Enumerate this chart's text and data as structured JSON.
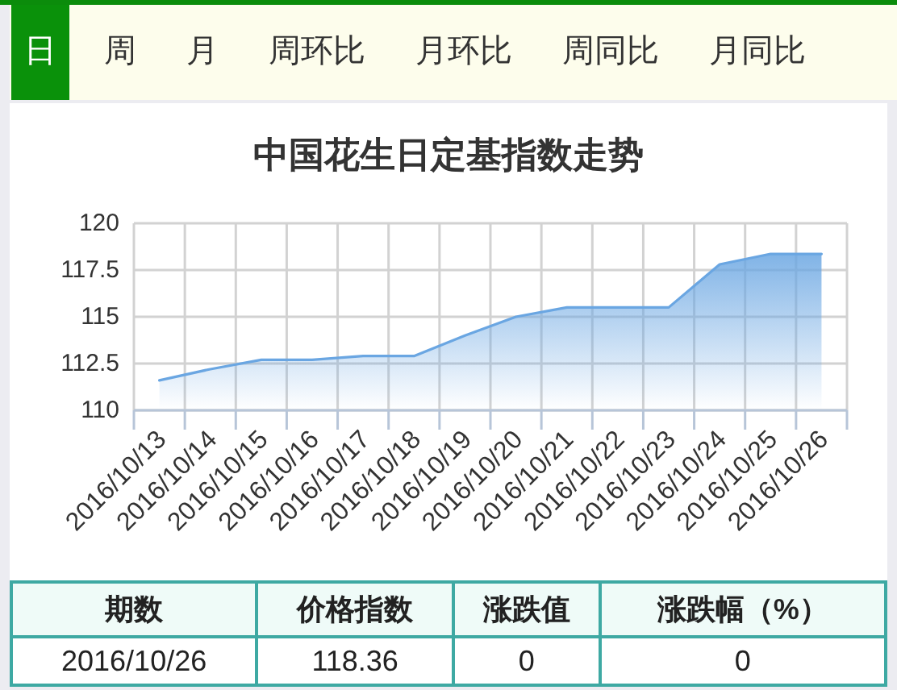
{
  "chart_data": {
    "type": "area",
    "title": "中国花生日定基指数走势",
    "categories": [
      "2016/10/13",
      "2016/10/14",
      "2016/10/15",
      "2016/10/16",
      "2016/10/17",
      "2016/10/18",
      "2016/10/19",
      "2016/10/20",
      "2016/10/21",
      "2016/10/22",
      "2016/10/23",
      "2016/10/24",
      "2016/10/25",
      "2016/10/26"
    ],
    "values": [
      111.6,
      112.2,
      112.7,
      112.7,
      112.9,
      112.9,
      114.0,
      115.0,
      115.5,
      115.5,
      115.5,
      117.8,
      118.36,
      118.36
    ],
    "color": "#6aa6e2",
    "ylim": [
      110,
      120
    ],
    "yticks": [
      110,
      112.5,
      115,
      117.5,
      120
    ],
    "grid": true,
    "annotations": [
      "日",
      "周",
      "月",
      "周环比",
      "月环比",
      "周同比",
      "月同比",
      "期数",
      "价格指数",
      "涨跌值",
      "涨跌幅（%）",
      "2016/10/26",
      "118.36",
      "0",
      "0"
    ]
  }
}
